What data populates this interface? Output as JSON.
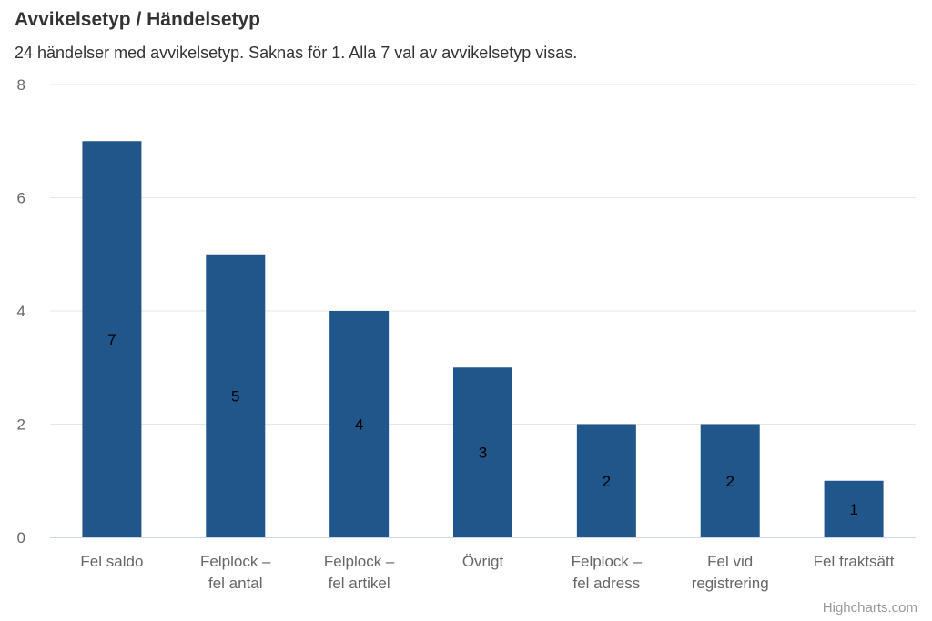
{
  "chart_data": {
    "type": "bar",
    "title": "Avvikelsetyp / Händelsetyp",
    "subtitle": "24 händelser med avvikelsetyp. Saknas för 1. Alla 7 val av avvikelsetyp visas.",
    "categories": [
      [
        "Fel saldo"
      ],
      [
        "Felplock –",
        "fel antal"
      ],
      [
        "Felplock –",
        "fel artikel"
      ],
      [
        "Övrigt"
      ],
      [
        "Felplock –",
        "fel adress"
      ],
      [
        "Fel vid",
        "registrering"
      ],
      [
        "Fel fraktsätt"
      ]
    ],
    "values": [
      7,
      5,
      4,
      3,
      2,
      2,
      1
    ],
    "ylim": [
      0,
      8
    ],
    "yticks": [
      0,
      2,
      4,
      6,
      8
    ],
    "grid": true,
    "data_labels": true,
    "colors": {
      "bar": "#21568a",
      "grid": "#e6e6e6",
      "axis_line": "#ccd6eb",
      "tick_text": "#666666",
      "data_label": "#000000"
    }
  },
  "credits": "Highcharts.com"
}
